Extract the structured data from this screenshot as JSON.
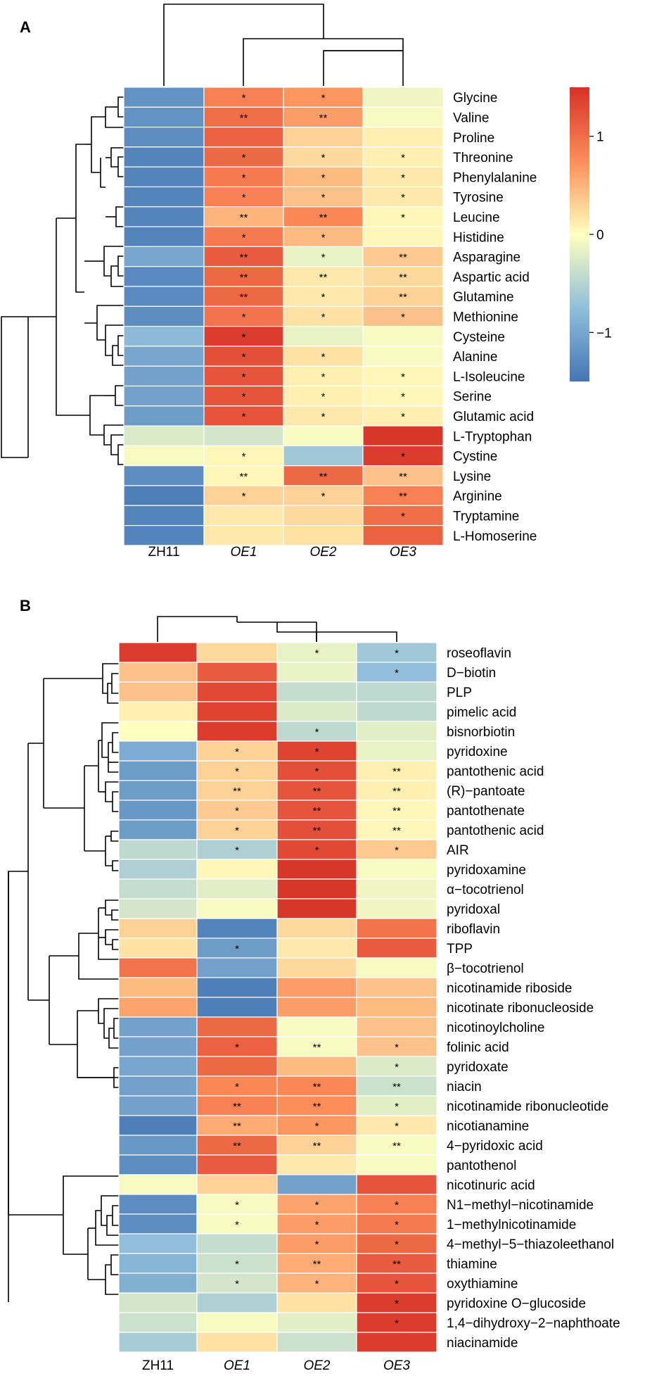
{
  "chart_data": [
    {
      "type": "heatmap",
      "panel_label": "A",
      "columns": [
        {
          "label": "ZH11",
          "italic": false
        },
        {
          "label": "OE1",
          "italic": true
        },
        {
          "label": "OE2",
          "italic": true
        },
        {
          "label": "OE3",
          "italic": true
        }
      ],
      "rows": [
        {
          "label": "Glycine",
          "values": [
            -1.2,
            0.85,
            0.7,
            -0.1
          ],
          "sig": [
            "",
            "*",
            "*",
            ""
          ]
        },
        {
          "label": "Valine",
          "values": [
            -1.2,
            1.0,
            0.65,
            -0.05
          ],
          "sig": [
            "",
            "**",
            "**",
            ""
          ]
        },
        {
          "label": "Proline",
          "values": [
            -1.25,
            1.1,
            0.3,
            0.1
          ],
          "sig": [
            "",
            "",
            "",
            ""
          ]
        },
        {
          "label": "Threonine",
          "values": [
            -1.35,
            1.05,
            0.25,
            0.1
          ],
          "sig": [
            "",
            "*",
            "*",
            "*"
          ]
        },
        {
          "label": "Phenylalanine",
          "values": [
            -1.35,
            0.9,
            0.45,
            0.15
          ],
          "sig": [
            "",
            "*",
            "*",
            "*"
          ]
        },
        {
          "label": "Tyrosine",
          "values": [
            -1.35,
            0.85,
            0.4,
            0.15
          ],
          "sig": [
            "",
            "*",
            "*",
            "*"
          ]
        },
        {
          "label": "Leucine",
          "values": [
            -1.35,
            0.5,
            0.8,
            0.05
          ],
          "sig": [
            "",
            "**",
            "**",
            "*"
          ]
        },
        {
          "label": "Histidine",
          "values": [
            -1.35,
            0.9,
            0.45,
            0.05
          ],
          "sig": [
            "",
            "*",
            "*",
            ""
          ]
        },
        {
          "label": "Asparagine",
          "values": [
            -1.0,
            1.15,
            -0.15,
            0.35
          ],
          "sig": [
            "",
            "**",
            "*",
            "**"
          ]
        },
        {
          "label": "Aspartic acid",
          "values": [
            -1.3,
            1.05,
            0.15,
            0.25
          ],
          "sig": [
            "",
            "**",
            "**",
            "**"
          ]
        },
        {
          "label": "Glutamine",
          "values": [
            -1.3,
            1.05,
            0.15,
            0.3
          ],
          "sig": [
            "",
            "**",
            "*",
            "**"
          ]
        },
        {
          "label": "Methionine",
          "values": [
            -1.25,
            0.95,
            0.2,
            0.4
          ],
          "sig": [
            "",
            "*",
            "*",
            "*"
          ]
        },
        {
          "label": "Cysteine",
          "values": [
            -0.8,
            1.4,
            -0.15,
            -0.05
          ],
          "sig": [
            "",
            "*",
            "",
            ""
          ]
        },
        {
          "label": "Alanine",
          "values": [
            -1.0,
            1.25,
            0.2,
            -0.05
          ],
          "sig": [
            "",
            "*",
            "*",
            ""
          ]
        },
        {
          "label": "L-Isoleucine",
          "values": [
            -1.05,
            1.2,
            0.1,
            0.05
          ],
          "sig": [
            "",
            "*",
            "*",
            "*"
          ]
        },
        {
          "label": "Serine",
          "values": [
            -1.05,
            1.2,
            0.1,
            0.05
          ],
          "sig": [
            "",
            "*",
            "*",
            "*"
          ]
        },
        {
          "label": "Glutamic acid",
          "values": [
            -1.1,
            1.2,
            0.15,
            0.1
          ],
          "sig": [
            "",
            "*",
            "*",
            "*"
          ]
        },
        {
          "label": "L-Tryptophan",
          "values": [
            -0.25,
            -0.3,
            -0.05,
            1.45
          ],
          "sig": [
            "",
            "",
            "",
            ""
          ]
        },
        {
          "label": "Cystine",
          "values": [
            -0.05,
            0.05,
            -0.65,
            1.4
          ],
          "sig": [
            "",
            "*",
            "",
            "*"
          ]
        },
        {
          "label": "Lysine",
          "values": [
            -1.25,
            0.05,
            1.05,
            0.4
          ],
          "sig": [
            "",
            "**",
            "**",
            "**"
          ]
        },
        {
          "label": "Arginine",
          "values": [
            -1.4,
            0.3,
            0.3,
            0.85
          ],
          "sig": [
            "",
            "*",
            "*",
            "**"
          ]
        },
        {
          "label": "Tryptamine",
          "values": [
            -1.35,
            0.15,
            0.25,
            1.0
          ],
          "sig": [
            "",
            "",
            "",
            "*"
          ]
        },
        {
          "label": "L-Homoserine",
          "values": [
            -1.35,
            0.15,
            0.2,
            1.1
          ],
          "sig": [
            "",
            "",
            "",
            ""
          ]
        }
      ],
      "legend": {
        "ticks": [
          1,
          0,
          -1
        ],
        "range": [
          -1.5,
          1.5
        ]
      }
    },
    {
      "type": "heatmap",
      "panel_label": "B",
      "columns": [
        {
          "label": "ZH11",
          "italic": false
        },
        {
          "label": "OE1",
          "italic": true
        },
        {
          "label": "OE2",
          "italic": true
        },
        {
          "label": "OE3",
          "italic": true
        }
      ],
      "rows": [
        {
          "label": "roseoflavin",
          "values": [
            1.4,
            0.25,
            -0.15,
            -0.65
          ],
          "sig": [
            "",
            "",
            "*",
            "*"
          ]
        },
        {
          "label": "D−biotin",
          "values": [
            0.4,
            1.15,
            -0.15,
            -0.75
          ],
          "sig": [
            "",
            "",
            "",
            "*"
          ]
        },
        {
          "label": "PLP",
          "values": [
            0.4,
            1.3,
            -0.4,
            -0.45
          ],
          "sig": [
            "",
            "",
            "",
            ""
          ]
        },
        {
          "label": "pimelic acid",
          "values": [
            0.1,
            1.35,
            -0.25,
            -0.45
          ],
          "sig": [
            "",
            "",
            "",
            ""
          ]
        },
        {
          "label": "bisnorbiotin",
          "values": [
            0.0,
            1.4,
            -0.45,
            -0.2
          ],
          "sig": [
            "",
            "",
            "*",
            ""
          ]
        },
        {
          "label": "pyridoxine",
          "values": [
            -0.95,
            0.3,
            1.35,
            -0.15
          ],
          "sig": [
            "",
            "*",
            "*",
            ""
          ]
        },
        {
          "label": "pantothenic acid",
          "values": [
            -1.1,
            0.3,
            1.25,
            0.1
          ],
          "sig": [
            "",
            "*",
            "*",
            "**"
          ]
        },
        {
          "label": "(R)−pantoate",
          "values": [
            -1.1,
            0.3,
            1.2,
            0.1
          ],
          "sig": [
            "",
            "**",
            "**",
            "**"
          ]
        },
        {
          "label": "pantothenate",
          "values": [
            -1.15,
            0.35,
            1.2,
            0.05
          ],
          "sig": [
            "",
            "*",
            "**",
            "**"
          ]
        },
        {
          "label": "pantothenic acid",
          "values": [
            -1.1,
            0.3,
            1.25,
            0.05
          ],
          "sig": [
            "",
            "*",
            "**",
            "**"
          ]
        },
        {
          "label": "AIR",
          "values": [
            -0.45,
            -0.55,
            1.3,
            0.35
          ],
          "sig": [
            "",
            "*",
            "*",
            "*"
          ]
        },
        {
          "label": "pyridoxamine",
          "values": [
            -0.55,
            0.05,
            1.45,
            -0.05
          ],
          "sig": [
            "",
            "",
            "",
            ""
          ]
        },
        {
          "label": "α−tocotrienol",
          "values": [
            -0.4,
            -0.2,
            1.45,
            -0.1
          ],
          "sig": [
            "",
            "",
            "",
            ""
          ]
        },
        {
          "label": "pyridoxal",
          "values": [
            -0.3,
            -0.05,
            1.45,
            -0.1
          ],
          "sig": [
            "",
            "",
            "",
            ""
          ]
        },
        {
          "label": "riboflavin",
          "values": [
            0.3,
            -1.35,
            0.25,
            0.95
          ],
          "sig": [
            "",
            "",
            "",
            ""
          ]
        },
        {
          "label": "TPP",
          "values": [
            0.2,
            -1.1,
            0.15,
            1.15
          ],
          "sig": [
            "",
            "*",
            "",
            ""
          ]
        },
        {
          "label": "β−tocotrienol",
          "values": [
            0.95,
            -1.05,
            0.25,
            -0.05
          ],
          "sig": [
            "",
            "",
            "",
            ""
          ]
        },
        {
          "label": "nicotinamide riboside",
          "values": [
            0.45,
            -1.4,
            0.65,
            0.4
          ],
          "sig": [
            "",
            "",
            "",
            ""
          ]
        },
        {
          "label": "nicotinate ribonucleoside",
          "values": [
            0.6,
            -1.4,
            0.65,
            0.45
          ],
          "sig": [
            "",
            "",
            "",
            ""
          ]
        },
        {
          "label": "nicotinoylcholine",
          "values": [
            -1.05,
            1.05,
            -0.05,
            0.4
          ],
          "sig": [
            "",
            "",
            "",
            ""
          ]
        },
        {
          "label": "folinic acid",
          "values": [
            -1.05,
            1.1,
            -0.05,
            0.4
          ],
          "sig": [
            "",
            "*",
            "**",
            "*"
          ]
        },
        {
          "label": "pyridoxate",
          "values": [
            -1.0,
            1.05,
            0.45,
            -0.25
          ],
          "sig": [
            "",
            "",
            "",
            "*"
          ]
        },
        {
          "label": "niacin",
          "values": [
            -1.05,
            0.8,
            0.8,
            -0.35
          ],
          "sig": [
            "",
            "*",
            "**",
            "**"
          ]
        },
        {
          "label": "nicotinamide ribonucleotide",
          "values": [
            -1.05,
            0.85,
            0.75,
            -0.2
          ],
          "sig": [
            "",
            "**",
            "**",
            "*"
          ]
        },
        {
          "label": "nicotianamine",
          "values": [
            -1.4,
            0.55,
            0.7,
            0.15
          ],
          "sig": [
            "",
            "**",
            "*",
            "*"
          ]
        },
        {
          "label": "4−pyridoxic acid",
          "values": [
            -1.15,
            1.05,
            0.3,
            -0.05
          ],
          "sig": [
            "",
            "**",
            "**",
            "**"
          ]
        },
        {
          "label": "pantothenol",
          "values": [
            -1.25,
            1.15,
            0.15,
            -0.05
          ],
          "sig": [
            "",
            "",
            "",
            ""
          ]
        },
        {
          "label": "nicotinuric acid",
          "values": [
            -0.05,
            0.3,
            -1.05,
            1.2
          ],
          "sig": [
            "",
            "",
            "",
            ""
          ]
        },
        {
          "label": "N1−methyl−nicotinamide",
          "values": [
            -1.25,
            -0.05,
            0.6,
            0.85
          ],
          "sig": [
            "",
            "*",
            "*",
            "*"
          ]
        },
        {
          "label": "1−methylnicotinamide",
          "values": [
            -1.25,
            -0.05,
            0.65,
            0.9
          ],
          "sig": [
            "",
            "*",
            "*",
            "*"
          ]
        },
        {
          "label": "4−methyl−5−thiazoleethanol",
          "values": [
            -0.75,
            -0.4,
            0.65,
            1.05
          ],
          "sig": [
            "",
            "",
            "*",
            "*"
          ]
        },
        {
          "label": "thiamine",
          "values": [
            -0.85,
            -0.35,
            0.55,
            1.15
          ],
          "sig": [
            "",
            "*",
            "**",
            "**"
          ]
        },
        {
          "label": "oxythiamine",
          "values": [
            -0.9,
            -0.3,
            0.5,
            1.2
          ],
          "sig": [
            "",
            "*",
            "*",
            "*"
          ]
        },
        {
          "label": "pyridoxine O−glucoside",
          "values": [
            -0.3,
            -0.55,
            0.2,
            1.4
          ],
          "sig": [
            "",
            "",
            "",
            "*"
          ]
        },
        {
          "label": "1,4−dihydroxy−2−naphthoate",
          "values": [
            -0.35,
            -0.05,
            -0.2,
            1.4
          ],
          "sig": [
            "",
            "",
            "",
            "*"
          ]
        },
        {
          "label": "niacinamide",
          "values": [
            -0.6,
            0.2,
            -0.35,
            1.4
          ],
          "sig": [
            "",
            "",
            "",
            ""
          ]
        }
      ]
    }
  ]
}
